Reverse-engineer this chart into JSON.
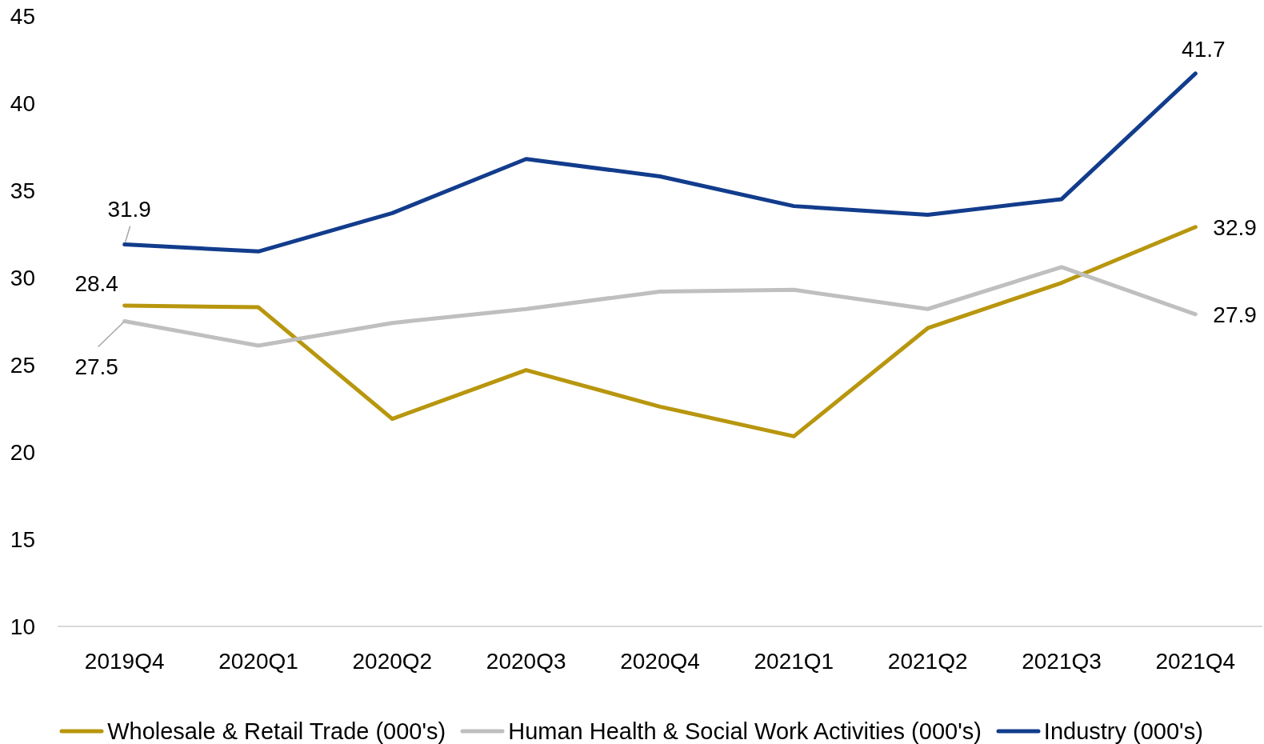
{
  "chart_data": {
    "type": "line",
    "categories": [
      "2019Q4",
      "2020Q1",
      "2020Q2",
      "2020Q3",
      "2020Q4",
      "2021Q1",
      "2021Q2",
      "2021Q3",
      "2021Q4"
    ],
    "series": [
      {
        "name": "Wholesale & Retail Trade (000's)",
        "color": "#b8960e",
        "values": [
          28.4,
          28.3,
          21.9,
          24.7,
          22.6,
          20.9,
          27.1,
          29.7,
          32.9
        ],
        "value_labels": [
          "28.4",
          null,
          null,
          null,
          null,
          null,
          null,
          null,
          "32.9"
        ]
      },
      {
        "name": "Human Health & Social Work Activities (000's)",
        "color": "#bfbfbf",
        "values": [
          27.5,
          26.1,
          27.4,
          28.2,
          29.2,
          29.3,
          28.2,
          30.6,
          27.9
        ],
        "value_labels": [
          "27.5",
          null,
          null,
          null,
          null,
          null,
          null,
          null,
          "27.9"
        ]
      },
      {
        "name": "Industry (000's)",
        "color": "#123c8c",
        "values": [
          31.9,
          31.5,
          33.7,
          36.8,
          35.8,
          34.1,
          33.6,
          34.5,
          41.7
        ],
        "value_labels": [
          "31.9",
          null,
          null,
          null,
          null,
          null,
          null,
          null,
          "41.7"
        ]
      }
    ],
    "ylim": [
      10,
      45
    ],
    "yticks": [
      10,
      15,
      20,
      25,
      30,
      35,
      40,
      45
    ],
    "legend": "bottom"
  }
}
